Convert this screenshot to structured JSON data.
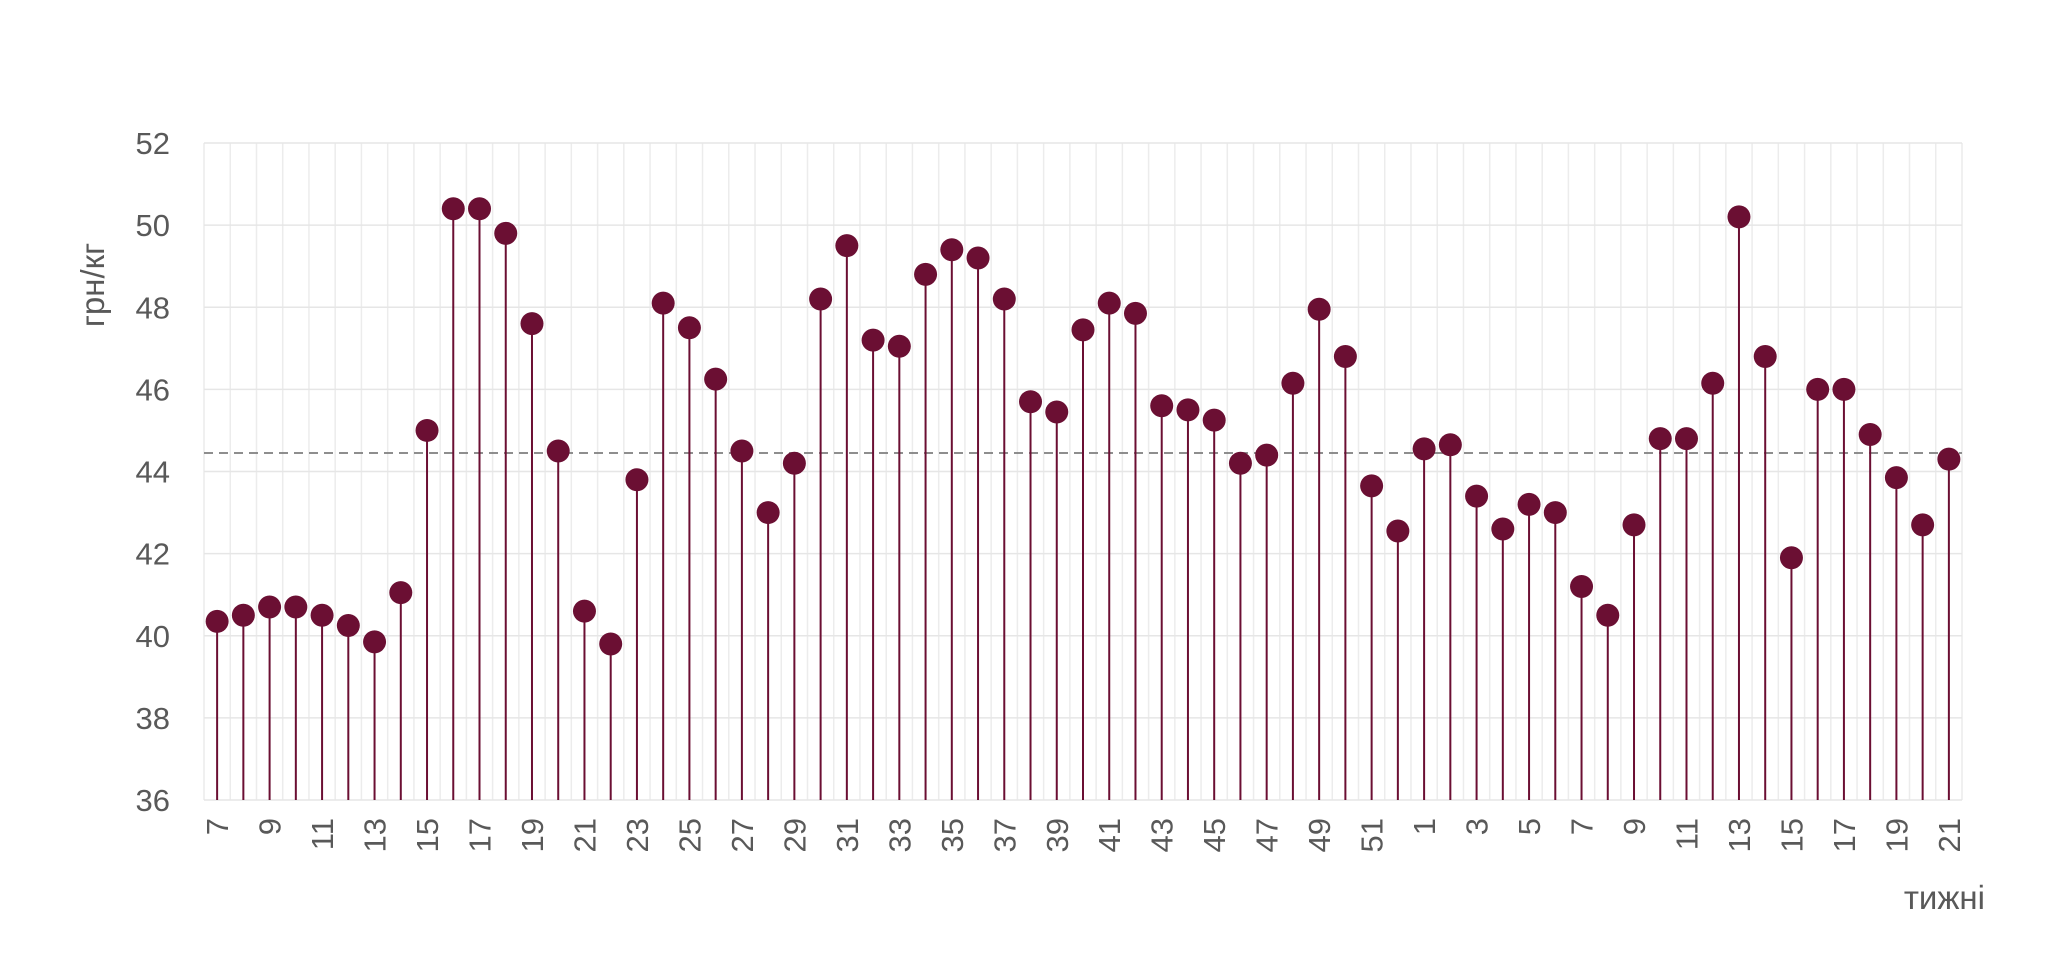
{
  "chart_data": {
    "type": "lollipop",
    "title": "",
    "xlabel": "тижні",
    "ylabel": "грн/кг",
    "ylim": [
      36,
      52
    ],
    "yticks": [
      36,
      38,
      40,
      42,
      44,
      46,
      48,
      50,
      52
    ],
    "grid": true,
    "reference_line": {
      "value": 44.45,
      "style": "dashed",
      "color": "#7f7f7f"
    },
    "series_color": "#6b0f33",
    "categories": [
      "7",
      "8",
      "9",
      "10",
      "11",
      "12",
      "13",
      "14",
      "15",
      "16",
      "17",
      "18",
      "19",
      "20",
      "21",
      "22",
      "23",
      "24",
      "25",
      "26",
      "27",
      "28",
      "29",
      "30",
      "31",
      "32",
      "33",
      "34",
      "35",
      "36",
      "37",
      "38",
      "39",
      "40",
      "41",
      "42",
      "43",
      "44",
      "45",
      "46",
      "47",
      "48",
      "49",
      "50",
      "51",
      "52",
      "1",
      "2",
      "3",
      "4",
      "5",
      "6",
      "7",
      "8",
      "9",
      "10",
      "11",
      "12",
      "13",
      "14",
      "15",
      "16",
      "17",
      "18",
      "19",
      "20",
      "21"
    ],
    "tick_labels_shown": [
      "7",
      "",
      "9",
      "",
      "11",
      "",
      "13",
      "",
      "15",
      "",
      "17",
      "",
      "19",
      "",
      "21",
      "",
      "23",
      "",
      "25",
      "",
      "27",
      "",
      "29",
      "",
      "31",
      "",
      "33",
      "",
      "35",
      "",
      "37",
      "",
      "39",
      "",
      "41",
      "",
      "43",
      "",
      "45",
      "",
      "47",
      "",
      "49",
      "",
      "51",
      "",
      "1",
      "",
      "3",
      "",
      "5",
      "",
      "7",
      "",
      "9",
      "",
      "11",
      "",
      "13",
      "",
      "15",
      "",
      "17",
      "",
      "19",
      "",
      "21"
    ],
    "values": [
      40.35,
      40.5,
      40.7,
      40.7,
      40.5,
      40.25,
      39.85,
      41.05,
      45.0,
      50.4,
      50.4,
      49.8,
      47.6,
      44.5,
      40.6,
      39.8,
      43.8,
      48.1,
      47.5,
      46.25,
      44.5,
      43.0,
      44.2,
      48.2,
      49.5,
      47.2,
      47.05,
      48.8,
      49.4,
      49.2,
      48.2,
      45.7,
      45.45,
      47.45,
      48.1,
      47.85,
      45.6,
      45.5,
      45.25,
      44.2,
      44.4,
      46.15,
      47.95,
      46.8,
      43.65,
      42.55,
      44.55,
      44.65,
      43.4,
      42.6,
      43.2,
      43.0,
      41.2,
      40.5,
      42.7,
      44.8,
      44.8,
      46.15,
      50.2,
      46.8,
      41.9,
      46.0,
      46.0,
      44.9,
      43.85,
      42.7,
      44.3
    ]
  }
}
